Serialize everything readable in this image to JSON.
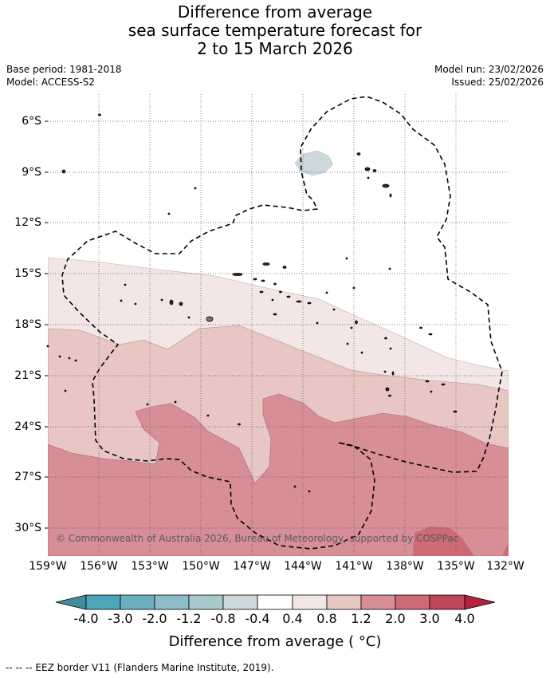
{
  "title": {
    "line1": "Difference from average",
    "line2": "sea surface temperature forecast for",
    "line3": "2 to 15 March 2026"
  },
  "meta": {
    "base_period": "Base period: 1981-2018",
    "model": "Model: ACCESS-S2",
    "model_run": "Model run: 23/02/2026",
    "issued": "Issued: 25/02/2026"
  },
  "map": {
    "copyright": "© Commonwealth of Australia 2026, Bureau of Meteorology, supported by COSPPac",
    "lat_labels": [
      "6°S",
      "9°S",
      "12°S",
      "15°S",
      "18°S",
      "21°S",
      "24°S",
      "27°S",
      "30°S"
    ],
    "lon_labels": [
      "159°W",
      "156°W",
      "153°W",
      "150°W",
      "147°W",
      "144°W",
      "141°W",
      "138°W",
      "135°W",
      "132°W"
    ],
    "colors": {
      "land_outline": "#000000",
      "eez_border": "#000000",
      "grid": "#555555"
    }
  },
  "colorbar": {
    "title": "Difference from average ( °C)",
    "tick_labels": [
      "-4.0",
      "-3.0",
      "-2.0",
      "-1.2",
      "-0.8",
      "-0.4",
      "0.4",
      "0.8",
      "1.2",
      "2.0",
      "3.0",
      "4.0"
    ],
    "colors": [
      "#3f8e9b",
      "#4aa6b8",
      "#6ab0c0",
      "#8ebcc8",
      "#a9c8cc",
      "#cdd8dc",
      "#ffffff",
      "#f3e6e6",
      "#e7c6c4",
      "#d78e96",
      "#cc6a75",
      "#c0475a",
      "#b5203e"
    ]
  },
  "footer": "--  --  -- EEZ border V11 (Flanders Marine Institute, 2019)."
}
